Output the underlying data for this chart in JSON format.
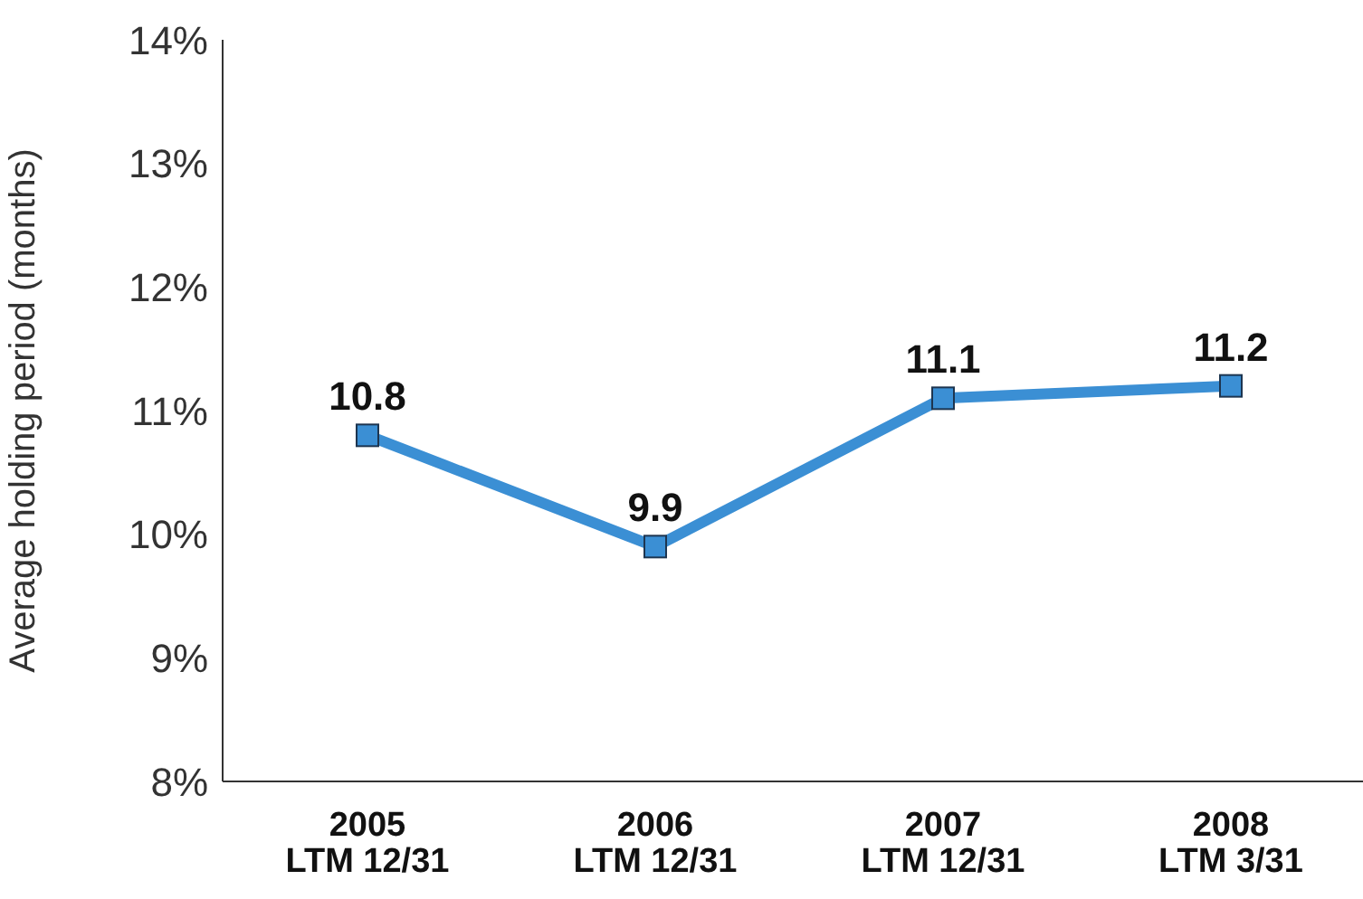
{
  "chart_data": {
    "type": "line",
    "ylabel": "Average holding period (months)",
    "categories": [
      "2005\nLTM 12/31",
      "2006\nLTM 12/31",
      "2007\nLTM 12/31",
      "2008\nLTM 3/31"
    ],
    "series": [
      {
        "color": "#3b8fd4",
        "values": [
          10.8,
          9.9,
          11.1,
          11.2
        ]
      }
    ],
    "ylim": [
      8,
      14
    ],
    "yticks": [
      {
        "value": 8,
        "label": "8%"
      },
      {
        "value": 9,
        "label": "9%"
      },
      {
        "value": 10,
        "label": "10%"
      },
      {
        "value": 11,
        "label": "11%"
      },
      {
        "value": 12,
        "label": "12%"
      },
      {
        "value": 13,
        "label": "13%"
      },
      {
        "value": 14,
        "label": "14%"
      }
    ],
    "data_labels": true,
    "marker": "square",
    "line_style": "solid",
    "grid": false,
    "legend": false
  }
}
